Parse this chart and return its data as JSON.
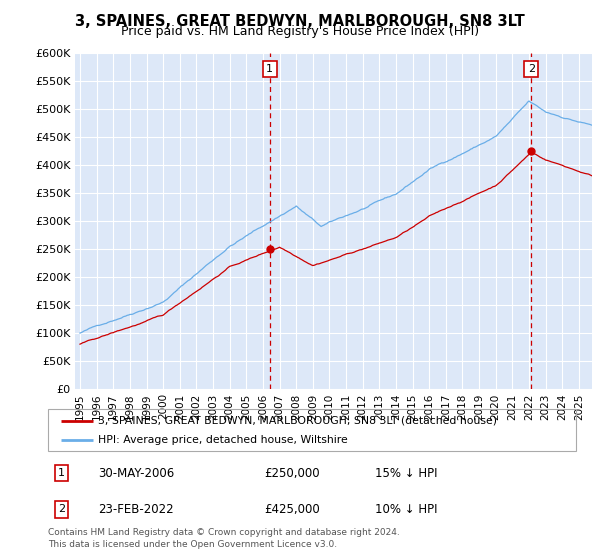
{
  "title": "3, SPAINES, GREAT BEDWYN, MARLBOROUGH, SN8 3LT",
  "subtitle": "Price paid vs. HM Land Registry's House Price Index (HPI)",
  "legend_line1": "3, SPAINES, GREAT BEDWYN, MARLBOROUGH, SN8 3LT (detached house)",
  "legend_line2": "HPI: Average price, detached house, Wiltshire",
  "annotation1_date": "30-MAY-2006",
  "annotation1_price": "£250,000",
  "annotation1_hpi": "15% ↓ HPI",
  "annotation2_date": "23-FEB-2022",
  "annotation2_price": "£425,000",
  "annotation2_hpi": "10% ↓ HPI",
  "footer": "Contains HM Land Registry data © Crown copyright and database right 2024.\nThis data is licensed under the Open Government Licence v3.0.",
  "hpi_color": "#6aaee8",
  "sale_color": "#CC0000",
  "bg_color": "#dde8f8",
  "ylim": [
    0,
    600000
  ],
  "yticks": [
    0,
    50000,
    100000,
    150000,
    200000,
    250000,
    300000,
    350000,
    400000,
    450000,
    500000,
    550000,
    600000
  ],
  "sale1_x": 2006.41,
  "sale1_y": 250000,
  "sale2_x": 2022.14,
  "sale2_y": 425000,
  "xlim_left": 1994.7,
  "xlim_right": 2025.8
}
